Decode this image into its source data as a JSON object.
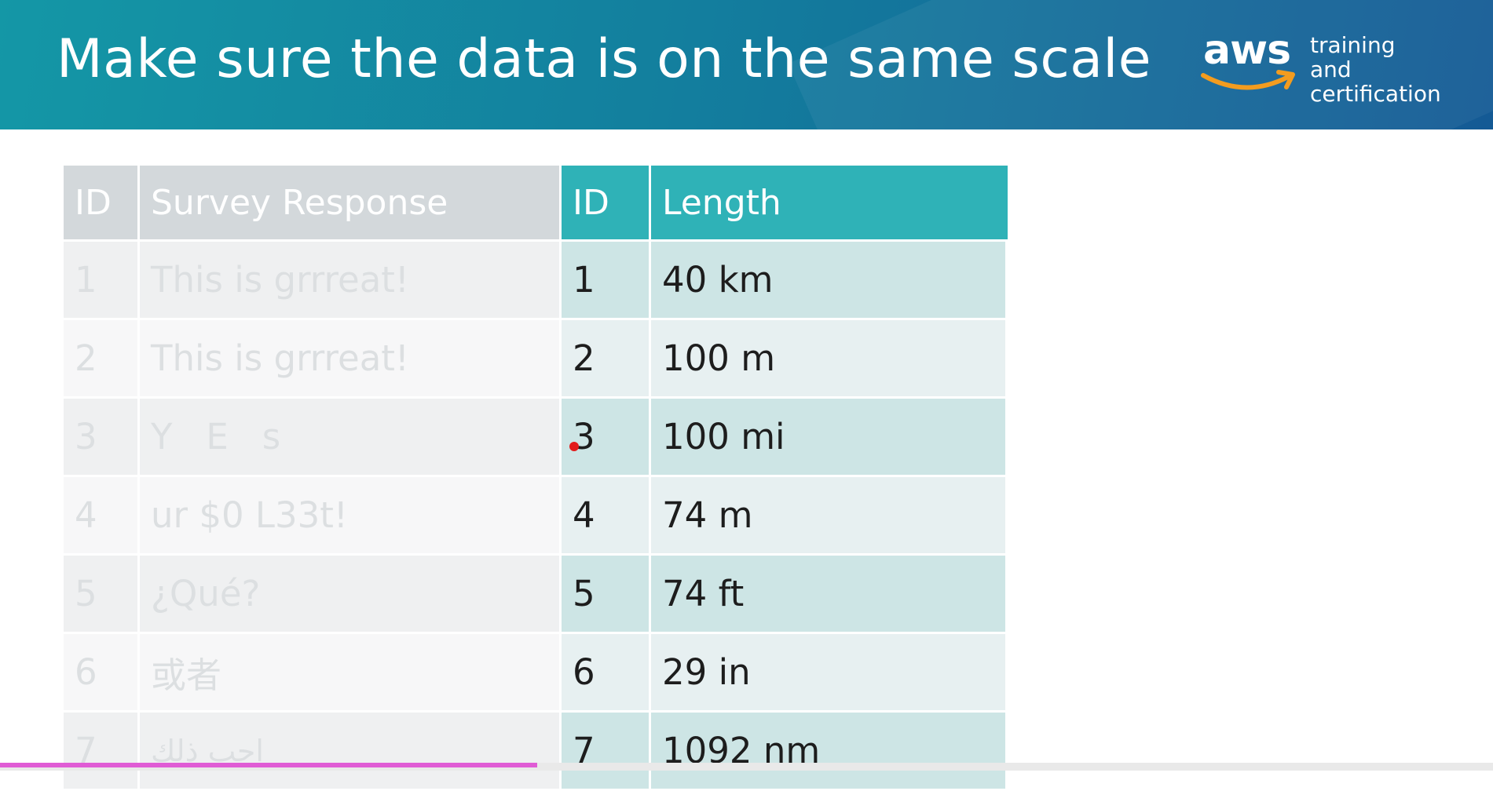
{
  "header": {
    "title": "Make sure the data is on the same scale",
    "logo_brand": "aws",
    "logo_line1": "training and",
    "logo_line2": "certification"
  },
  "table": {
    "headers": [
      "ID",
      "Survey Response",
      "ID",
      "Length"
    ],
    "rows": [
      {
        "id": "1",
        "response": "This is grrreat!",
        "id2": "1",
        "length": "40 km"
      },
      {
        "id": "2",
        "response": "This is grrreat!",
        "id2": "2",
        "length": "100 m"
      },
      {
        "id": "3",
        "response": "Y   E   s",
        "id2": "3",
        "length": "100 mi"
      },
      {
        "id": "4",
        "response": "ur $0 L33t!",
        "id2": "4",
        "length": "74 m"
      },
      {
        "id": "5",
        "response": "¿Qué?",
        "id2": "5",
        "length": "74 ft"
      },
      {
        "id": "6",
        "response": "或者",
        "id2": "6",
        "length": "29 in"
      },
      {
        "id": "7",
        "response": "احب ذلك",
        "id2": "7",
        "length": "1092 nm"
      }
    ]
  },
  "colors": {
    "header_gradient_start": "#1497a6",
    "header_gradient_end": "#145a95",
    "highlight_header": "#2fb2b7",
    "highlight_row": "#cde5e5",
    "faded_header": "#d3d8db",
    "logo_smile": "#f39c1f",
    "progress": "#e05cd5"
  },
  "video_progress": 0.36
}
